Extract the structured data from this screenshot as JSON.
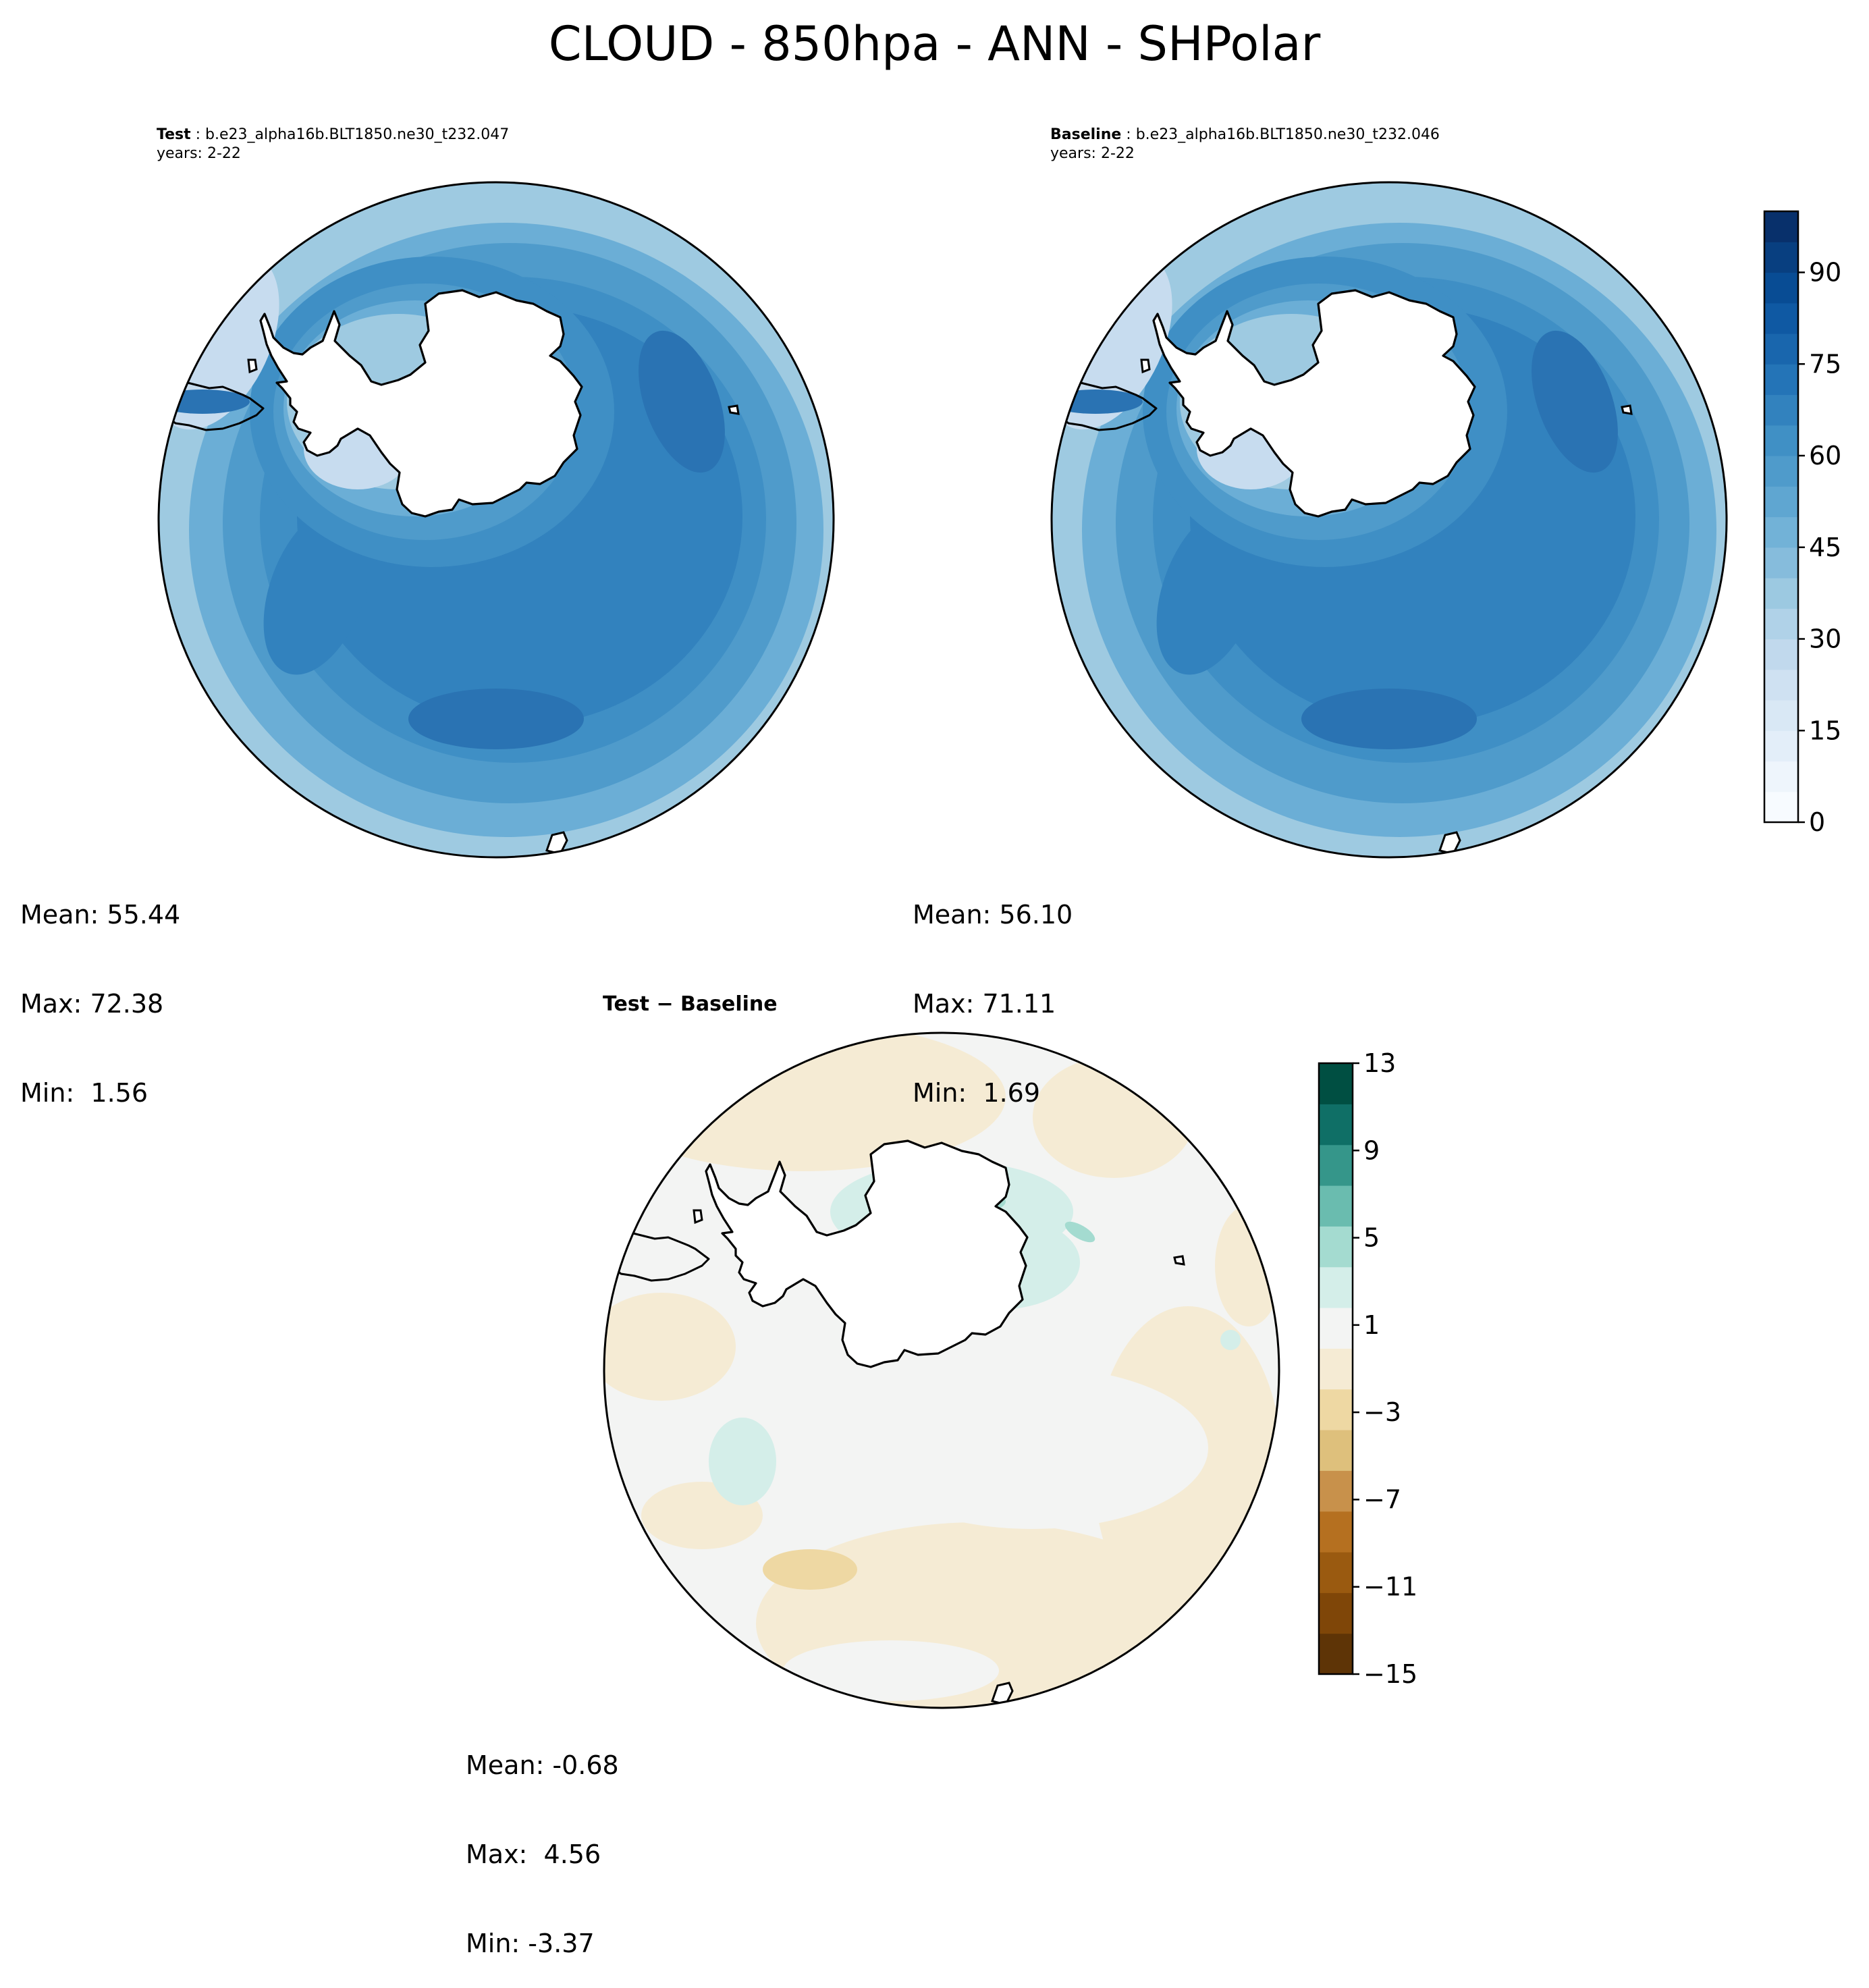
{
  "figure": {
    "title": "CLOUD - 850hpa - ANN - SHPolar"
  },
  "panels": {
    "test": {
      "label": "Test",
      "case": " : b.e23_alpha16b.BLT1850.ne30_t232.047",
      "years": "years: 2-22",
      "stats": {
        "mean": "Mean: 55.44",
        "max": "Max: 72.38",
        "min": "Min:  1.56"
      }
    },
    "baseline": {
      "label": "Baseline",
      "case": " : b.e23_alpha16b.BLT1850.ne30_t232.046",
      "years": "years: 2-22",
      "stats": {
        "mean": "Mean: 56.10",
        "max": "Max: 71.11",
        "min": "Min:  1.69"
      }
    },
    "diff": {
      "label": "Test − Baseline",
      "stats": {
        "mean": "Mean: -0.68",
        "max": "Max:  4.56",
        "min": "Min: -3.37"
      }
    }
  },
  "colorbars": {
    "main": {
      "ticks": [
        "0",
        "15",
        "30",
        "45",
        "60",
        "75",
        "90"
      ],
      "tick_values": [
        0,
        15,
        30,
        45,
        60,
        75,
        90
      ],
      "range": [
        0,
        100
      ],
      "colors": [
        "#f7fbff",
        "#eef5fc",
        "#e3eef9",
        "#d9e8f5",
        "#cfe1f2",
        "#c1d9ed",
        "#b0d2e8",
        "#9cc9e1",
        "#86bcdc",
        "#72b2d7",
        "#5fa6d1",
        "#4f9bcb",
        "#4090c5",
        "#3282be",
        "#2474b7",
        "#1966ad",
        "#0f59a3",
        "#084c94",
        "#083f80",
        "#08306b"
      ]
    },
    "diff": {
      "ticks": [
        "13",
        "9",
        "5",
        "1",
        "−3",
        "−7",
        "−11",
        "−15"
      ],
      "tick_values": [
        13,
        9,
        5,
        1,
        -3,
        -7,
        -11,
        -15
      ],
      "range": [
        -15,
        13
      ],
      "colors": [
        "#5e3406",
        "#7f4608",
        "#9a5a10",
        "#b57020",
        "#c8914b",
        "#dec07c",
        "#eed8a3",
        "#f5ebd4",
        "#f3f4f3",
        "#d4eee9",
        "#a4dbd0",
        "#6abcaf",
        "#35968a",
        "#0f6f66",
        "#004f42"
      ]
    }
  },
  "map_colors": {
    "land": "#ffffff",
    "coast": "#000000",
    "main_field": [
      "#c7dcef",
      "#9ecae1",
      "#6baed6",
      "#4f9bcb",
      "#3f8fc5",
      "#3282be",
      "#2a73b3"
    ],
    "diff_field": {
      "neutral": "#f3f4f3",
      "neg": "#f5ebd4",
      "neg2": "#eed8a3",
      "pos": "#d4eee9",
      "pos2": "#a4dbd0"
    }
  }
}
